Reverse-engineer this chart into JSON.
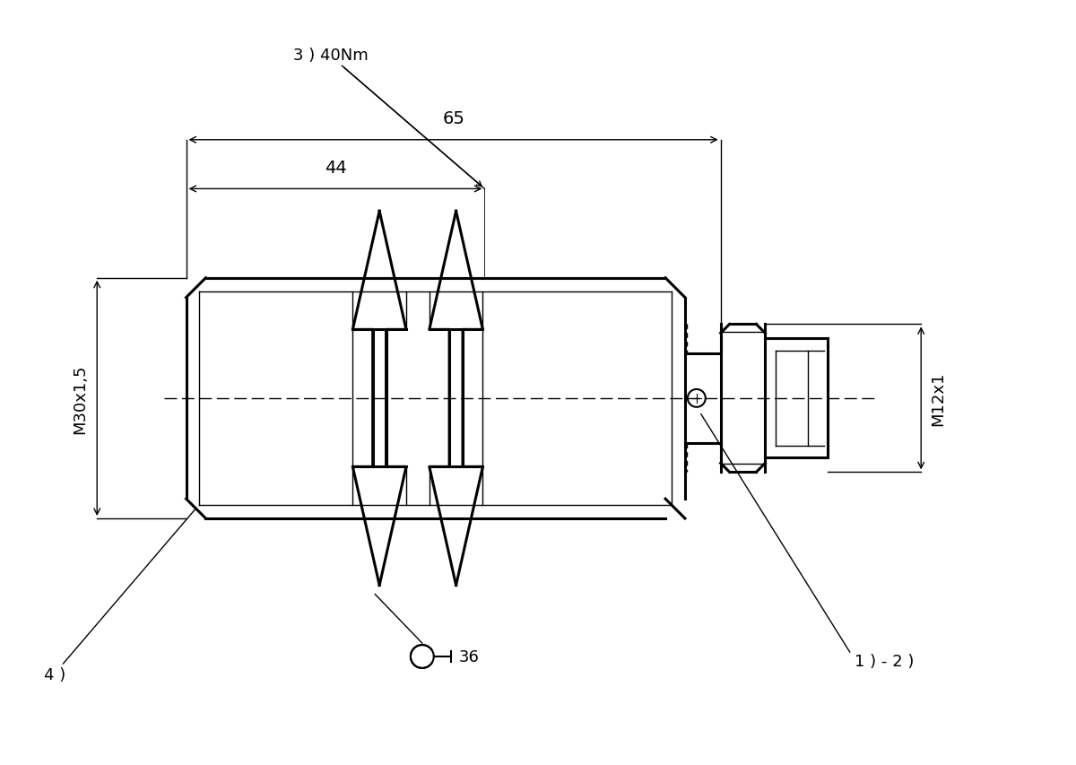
{
  "bg_color": "#ffffff",
  "line_color": "#000000",
  "lw_thick": 2.2,
  "lw_medium": 1.5,
  "lw_thin": 1.0,
  "fig_w": 12.0,
  "fig_h": 8.54,
  "labels": {
    "dim_65": "65",
    "dim_44": "44",
    "dim_40Nm": "3 ) 40Nm",
    "M30x15": "M30x1,5",
    "M12x1": "M12x1",
    "wrench36": "36",
    "label1": "1 ) - 2 )",
    "label4": "4 )"
  }
}
